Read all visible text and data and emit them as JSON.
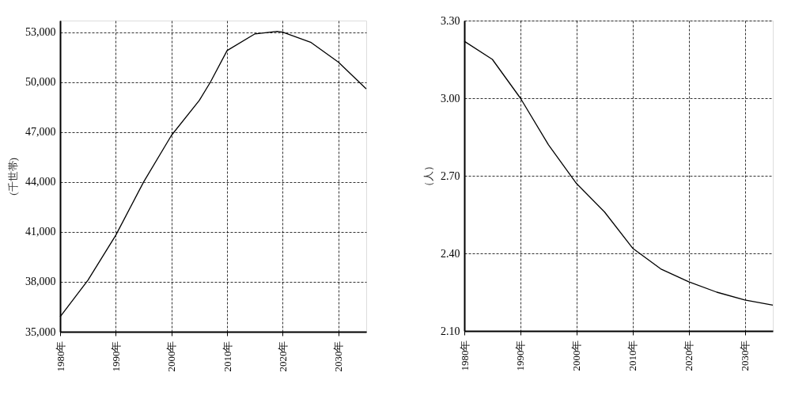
{
  "chart_data": [
    {
      "type": "line",
      "ylabel": "(千世帯)",
      "x": [
        1980,
        1985,
        1990,
        1995,
        2000,
        2005,
        2007,
        2010,
        2015,
        2019,
        2020,
        2025,
        2030,
        2035
      ],
      "series": [
        {
          "color": "#000000",
          "values": [
            35900,
            38100,
            40800,
            44000,
            46800,
            48900,
            50000,
            51900,
            52900,
            53050,
            53000,
            52400,
            51200,
            49600
          ]
        }
      ],
      "xlim": [
        1980,
        2035
      ],
      "xticks": [
        {
          "value": 1980,
          "label": "1980年"
        },
        {
          "value": 1990,
          "label": "1990年"
        },
        {
          "value": 2000,
          "label": "2000年"
        },
        {
          "value": 2010,
          "label": "2010年"
        },
        {
          "value": 2020,
          "label": "2020年"
        },
        {
          "value": 2030,
          "label": "2030年"
        }
      ],
      "ylim": [
        35000,
        53700
      ],
      "yticks": [
        {
          "value": 35000,
          "label": "35,000"
        },
        {
          "value": 38000,
          "label": "38,000"
        },
        {
          "value": 41000,
          "label": "41,000"
        },
        {
          "value": 44000,
          "label": "44,000"
        },
        {
          "value": 47000,
          "label": "47,000"
        },
        {
          "value": 50000,
          "label": "50,000"
        },
        {
          "value": 53000,
          "label": "53,000"
        }
      ],
      "grid": true,
      "line_style": "solid",
      "marker": "none"
    },
    {
      "type": "line",
      "ylabel": "（人）",
      "x": [
        1980,
        1985,
        1990,
        1995,
        2000,
        2005,
        2010,
        2015,
        2020,
        2025,
        2030,
        2035
      ],
      "series": [
        {
          "color": "#000000",
          "values": [
            3.22,
            3.15,
            3.0,
            2.82,
            2.67,
            2.56,
            2.42,
            2.34,
            2.29,
            2.25,
            2.22,
            2.2
          ]
        }
      ],
      "xlim": [
        1980,
        2035
      ],
      "xticks": [
        {
          "value": 1980,
          "label": "1980年"
        },
        {
          "value": 1990,
          "label": "1990年"
        },
        {
          "value": 2000,
          "label": "2000年"
        },
        {
          "value": 2010,
          "label": "2010年"
        },
        {
          "value": 2020,
          "label": "2020年"
        },
        {
          "value": 2030,
          "label": "2030年"
        }
      ],
      "ylim": [
        2.1,
        3.3
      ],
      "yticks": [
        {
          "value": 2.1,
          "label": "2.10"
        },
        {
          "value": 2.4,
          "label": "2.40"
        },
        {
          "value": 2.7,
          "label": "2.70"
        },
        {
          "value": 3.0,
          "label": "3.00"
        },
        {
          "value": 3.3,
          "label": "3.30"
        }
      ],
      "grid": true,
      "line_style": "solid",
      "marker": "none"
    }
  ]
}
